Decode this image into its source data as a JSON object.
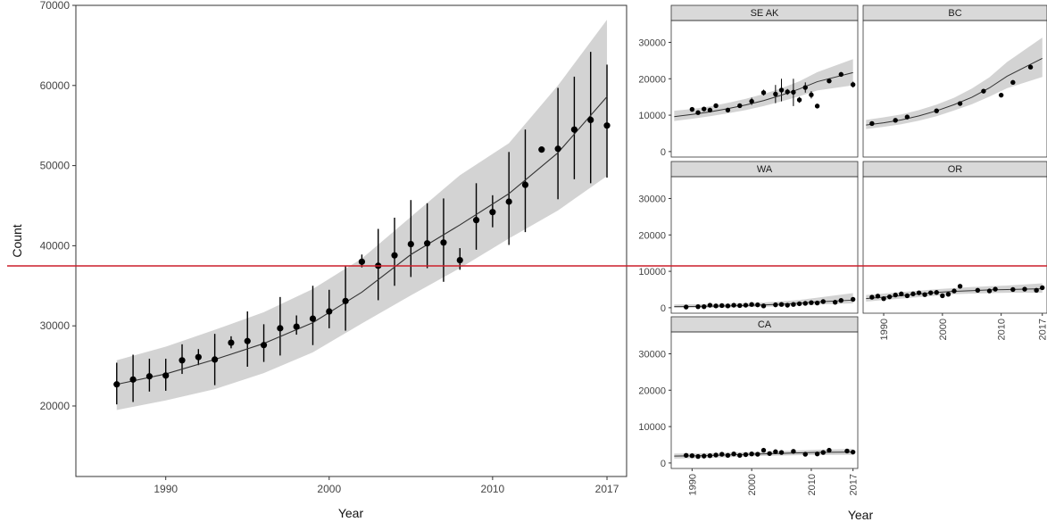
{
  "chart_data": [
    {
      "type": "line",
      "panel": "main",
      "title": "",
      "xlabel": "Year",
      "ylabel": "Count",
      "xlim": [
        1984.5,
        2018.2
      ],
      "ylim": [
        11200,
        70000
      ],
      "x_ticks": [
        1990,
        2000,
        2010,
        2017
      ],
      "y_ticks": [
        20000,
        30000,
        40000,
        50000,
        60000,
        70000
      ],
      "grid": false,
      "points": {
        "x": [
          1987,
          1988,
          1989,
          1990,
          1991,
          1992,
          1993,
          1994,
          1995,
          1996,
          1997,
          1998,
          1999,
          2000,
          2001,
          2002,
          2003,
          2004,
          2005,
          2006,
          2007,
          2008,
          2009,
          2010,
          2011,
          2012,
          2013,
          2014,
          2015,
          2016,
          2017
        ],
        "y": [
          22700,
          23300,
          23700,
          23800,
          25700,
          26100,
          25800,
          27900,
          28100,
          27600,
          29700,
          29900,
          30900,
          31800,
          33100,
          38000,
          37500,
          38800,
          40200,
          40300,
          40400,
          38200,
          43200,
          44200,
          45500,
          47600,
          52000,
          52100,
          54500,
          55700,
          55000
        ],
        "err_low": [
          20200,
          20500,
          21800,
          21900,
          24000,
          25100,
          22600,
          27200,
          24900,
          25500,
          26300,
          28900,
          27600,
          29700,
          29400,
          37300,
          33200,
          35000,
          36100,
          37200,
          35500,
          37000,
          39500,
          42300,
          40100,
          41700,
          52000,
          45800,
          48300,
          47800,
          48500
        ],
        "err_high": [
          25400,
          26400,
          25900,
          25900,
          27700,
          27100,
          29000,
          28700,
          31800,
          30200,
          33600,
          31300,
          35000,
          34500,
          37500,
          38900,
          42100,
          43500,
          45700,
          45300,
          45900,
          39700,
          47800,
          46300,
          51700,
          54500,
          52000,
          59700,
          61100,
          64200,
          62600
        ]
      },
      "fit": {
        "x": [
          1987,
          1990,
          1993,
          1996,
          1999,
          2002,
          2005,
          2008,
          2011,
          2014,
          2017
        ],
        "y": [
          22700,
          24000,
          25800,
          27800,
          30400,
          34200,
          38900,
          42600,
          46500,
          51600,
          58600
        ],
        "band_low": [
          19500,
          20700,
          22100,
          24100,
          26700,
          30300,
          33800,
          37200,
          40900,
          44400,
          48700
        ],
        "band_high": [
          25700,
          27400,
          29500,
          31700,
          34600,
          38400,
          43600,
          48800,
          52800,
          60000,
          68200
        ]
      }
    },
    {
      "type": "line",
      "panel": "SE AK",
      "strip": "SE AK",
      "x": [
        1990,
        1991,
        1992,
        1993,
        1994,
        1996,
        1998,
        2000,
        2002,
        2004,
        2005,
        2006,
        2007,
        2008,
        2009,
        2010,
        2011,
        2013,
        2015,
        2017
      ],
      "y": [
        11600,
        10700,
        11700,
        11400,
        12600,
        11400,
        12600,
        13800,
        16200,
        15800,
        16900,
        16400,
        16300,
        14200,
        17600,
        15600,
        12500,
        19400,
        21200,
        18400
      ],
      "err_low": [
        11200,
        10300,
        11300,
        11000,
        12200,
        11000,
        12200,
        12800,
        15400,
        13300,
        13800,
        15600,
        12500,
        13400,
        16200,
        14600,
        12000,
        18800,
        20800,
        17600
      ],
      "err_high": [
        12000,
        11100,
        12100,
        11800,
        13000,
        11800,
        13000,
        14800,
        17000,
        18300,
        20000,
        17200,
        20000,
        15000,
        19000,
        16600,
        13000,
        20000,
        21600,
        19200
      ],
      "fit": [
        9600,
        10200,
        10900,
        11800,
        12800,
        14000,
        15500,
        17200,
        19200,
        21700
      ],
      "band_low": [
        8400,
        9000,
        9700,
        10500,
        11400,
        12500,
        13800,
        15200,
        16800,
        18200
      ],
      "band_high": [
        11200,
        11700,
        12400,
        13400,
        14500,
        15800,
        17400,
        19300,
        21800,
        25400
      ]
    },
    {
      "type": "line",
      "panel": "BC",
      "strip": "BC",
      "x": [
        1988,
        1992,
        1994,
        1999,
        2003,
        2007,
        2010,
        2012,
        2015
      ],
      "y": [
        7700,
        8600,
        9500,
        11200,
        13200,
        16600,
        15500,
        19000,
        23200
      ],
      "fit": [
        7300,
        7900,
        8700,
        9800,
        11200,
        12900,
        14900,
        17500,
        20700,
        25600
      ],
      "band_low": [
        6200,
        6800,
        7500,
        8500,
        9700,
        11300,
        13000,
        15100,
        17400,
        20500
      ],
      "band_high": [
        8700,
        9400,
        10200,
        11400,
        12900,
        14800,
        17300,
        20400,
        24600,
        31300
      ]
    },
    {
      "type": "line",
      "panel": "WA",
      "strip": "WA",
      "x": [
        1989,
        1991,
        1992,
        1993,
        1994,
        1995,
        1996,
        1997,
        1998,
        1999,
        2000,
        2001,
        2002,
        2004,
        2005,
        2006,
        2007,
        2008,
        2009,
        2010,
        2011,
        2012,
        2014,
        2015,
        2017
      ],
      "y": [
        200,
        300,
        300,
        700,
        500,
        600,
        500,
        700,
        600,
        700,
        900,
        800,
        500,
        800,
        900,
        700,
        900,
        1100,
        1200,
        1400,
        1300,
        1700,
        1500,
        2000,
        2300
      ],
      "fit": [
        300,
        350,
        420,
        500,
        620,
        780,
        980,
        1250,
        1600,
        2100
      ],
      "band_low": [
        0,
        0,
        0,
        50,
        150,
        250,
        400,
        600,
        900,
        1200
      ],
      "band_high": [
        900,
        950,
        1000,
        1100,
        1250,
        1450,
        1750,
        2150,
        2750,
        4000
      ]
    },
    {
      "type": "line",
      "panel": "OR",
      "strip": "OR",
      "x": [
        1988,
        1989,
        1990,
        1991,
        1992,
        1993,
        1994,
        1995,
        1996,
        1997,
        1998,
        1999,
        2000,
        2001,
        2002,
        2003,
        2006,
        2008,
        2009,
        2012,
        2014,
        2016,
        2017
      ],
      "y": [
        2900,
        3200,
        2500,
        3000,
        3500,
        3800,
        3300,
        3800,
        4100,
        3600,
        4100,
        4200,
        3300,
        3700,
        4600,
        5900,
        4800,
        4600,
        5100,
        5000,
        5100,
        4800,
        5500
      ],
      "fit": [
        2500,
        2900,
        3300,
        3800,
        4200,
        4500,
        4700,
        4900,
        5000,
        5200
      ],
      "band_low": [
        1700,
        2100,
        2500,
        2900,
        3300,
        3700,
        3900,
        4000,
        4100,
        4100
      ],
      "band_high": [
        3500,
        3900,
        4300,
        4700,
        5100,
        5400,
        5700,
        5900,
        6100,
        6700
      ]
    },
    {
      "type": "line",
      "panel": "CA",
      "strip": "CA",
      "x": [
        1989,
        1990,
        1991,
        1992,
        1993,
        1994,
        1995,
        1996,
        1997,
        1998,
        1999,
        2000,
        2001,
        2002,
        2003,
        2004,
        2005,
        2007,
        2009,
        2011,
        2012,
        2013,
        2016,
        2017
      ],
      "y": [
        2100,
        2000,
        1800,
        1900,
        2000,
        2200,
        2400,
        2100,
        2500,
        2100,
        2300,
        2500,
        2400,
        3500,
        2600,
        3100,
        2900,
        3200,
        2400,
        2500,
        2900,
        3500,
        3300,
        3000
      ],
      "fit": [
        1900,
        1950,
        2050,
        2200,
        2350,
        2500,
        2650,
        2800,
        2900,
        3000
      ],
      "band_low": [
        1200,
        1300,
        1450,
        1600,
        1800,
        1950,
        2050,
        2150,
        2200,
        2250
      ],
      "band_high": [
        2600,
        2650,
        2700,
        2850,
        2950,
        3100,
        3300,
        3450,
        3650,
        3850
      ]
    }
  ],
  "facet_axes": {
    "y_ticks": [
      0,
      10000,
      20000,
      30000
    ],
    "x_ticks": [
      "1990",
      "2000",
      "2010",
      "2017"
    ],
    "xlabel": "Year"
  },
  "overlay": {
    "hline_color": "#cc1f2a"
  },
  "colors": {
    "band": "#d3d3d3",
    "strip": "#d9d9d9",
    "points": "#000000",
    "line": "#333333"
  }
}
